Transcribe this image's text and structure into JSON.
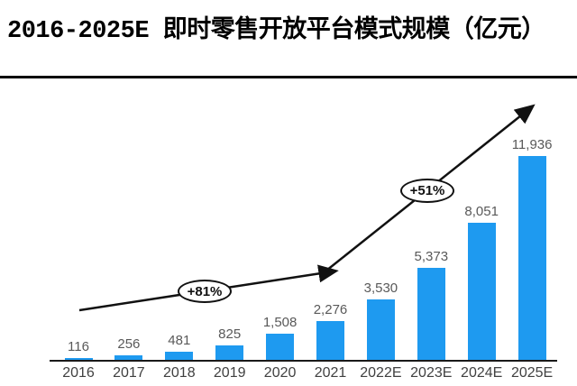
{
  "page": {
    "title": "2016-2025E 即时零售开放平台模式规模（亿元）"
  },
  "chart_data": {
    "type": "bar",
    "title": "2016-2025E 即时零售开放平台模式规模（亿元）",
    "unit": "亿元",
    "categories": [
      "2016",
      "2017",
      "2018",
      "2019",
      "2020",
      "2021",
      "2022E",
      "2023E",
      "2024E",
      "2025E"
    ],
    "values": [
      116,
      256,
      481,
      825,
      1508,
      2276,
      3530,
      5373,
      8051,
      11936
    ],
    "value_labels": [
      "116",
      "256",
      "481",
      "825",
      "1,508",
      "2,276",
      "3,530",
      "5,373",
      "8,051",
      "11,936"
    ],
    "bar_color": "#1e9af0",
    "value_label_color": "#595959",
    "tick_label_color": "#404040",
    "axis_color": "#1a1a1a",
    "xlabel": "",
    "ylabel": "",
    "ylim": [
      0,
      12600
    ],
    "grid": false,
    "legend": false,
    "annotations": [
      {
        "label": "+81%",
        "type": "growth-arrow",
        "from": "2016",
        "to": "2021"
      },
      {
        "label": "+51%",
        "type": "growth-arrow",
        "from": "2021",
        "to": "2025E"
      }
    ]
  }
}
